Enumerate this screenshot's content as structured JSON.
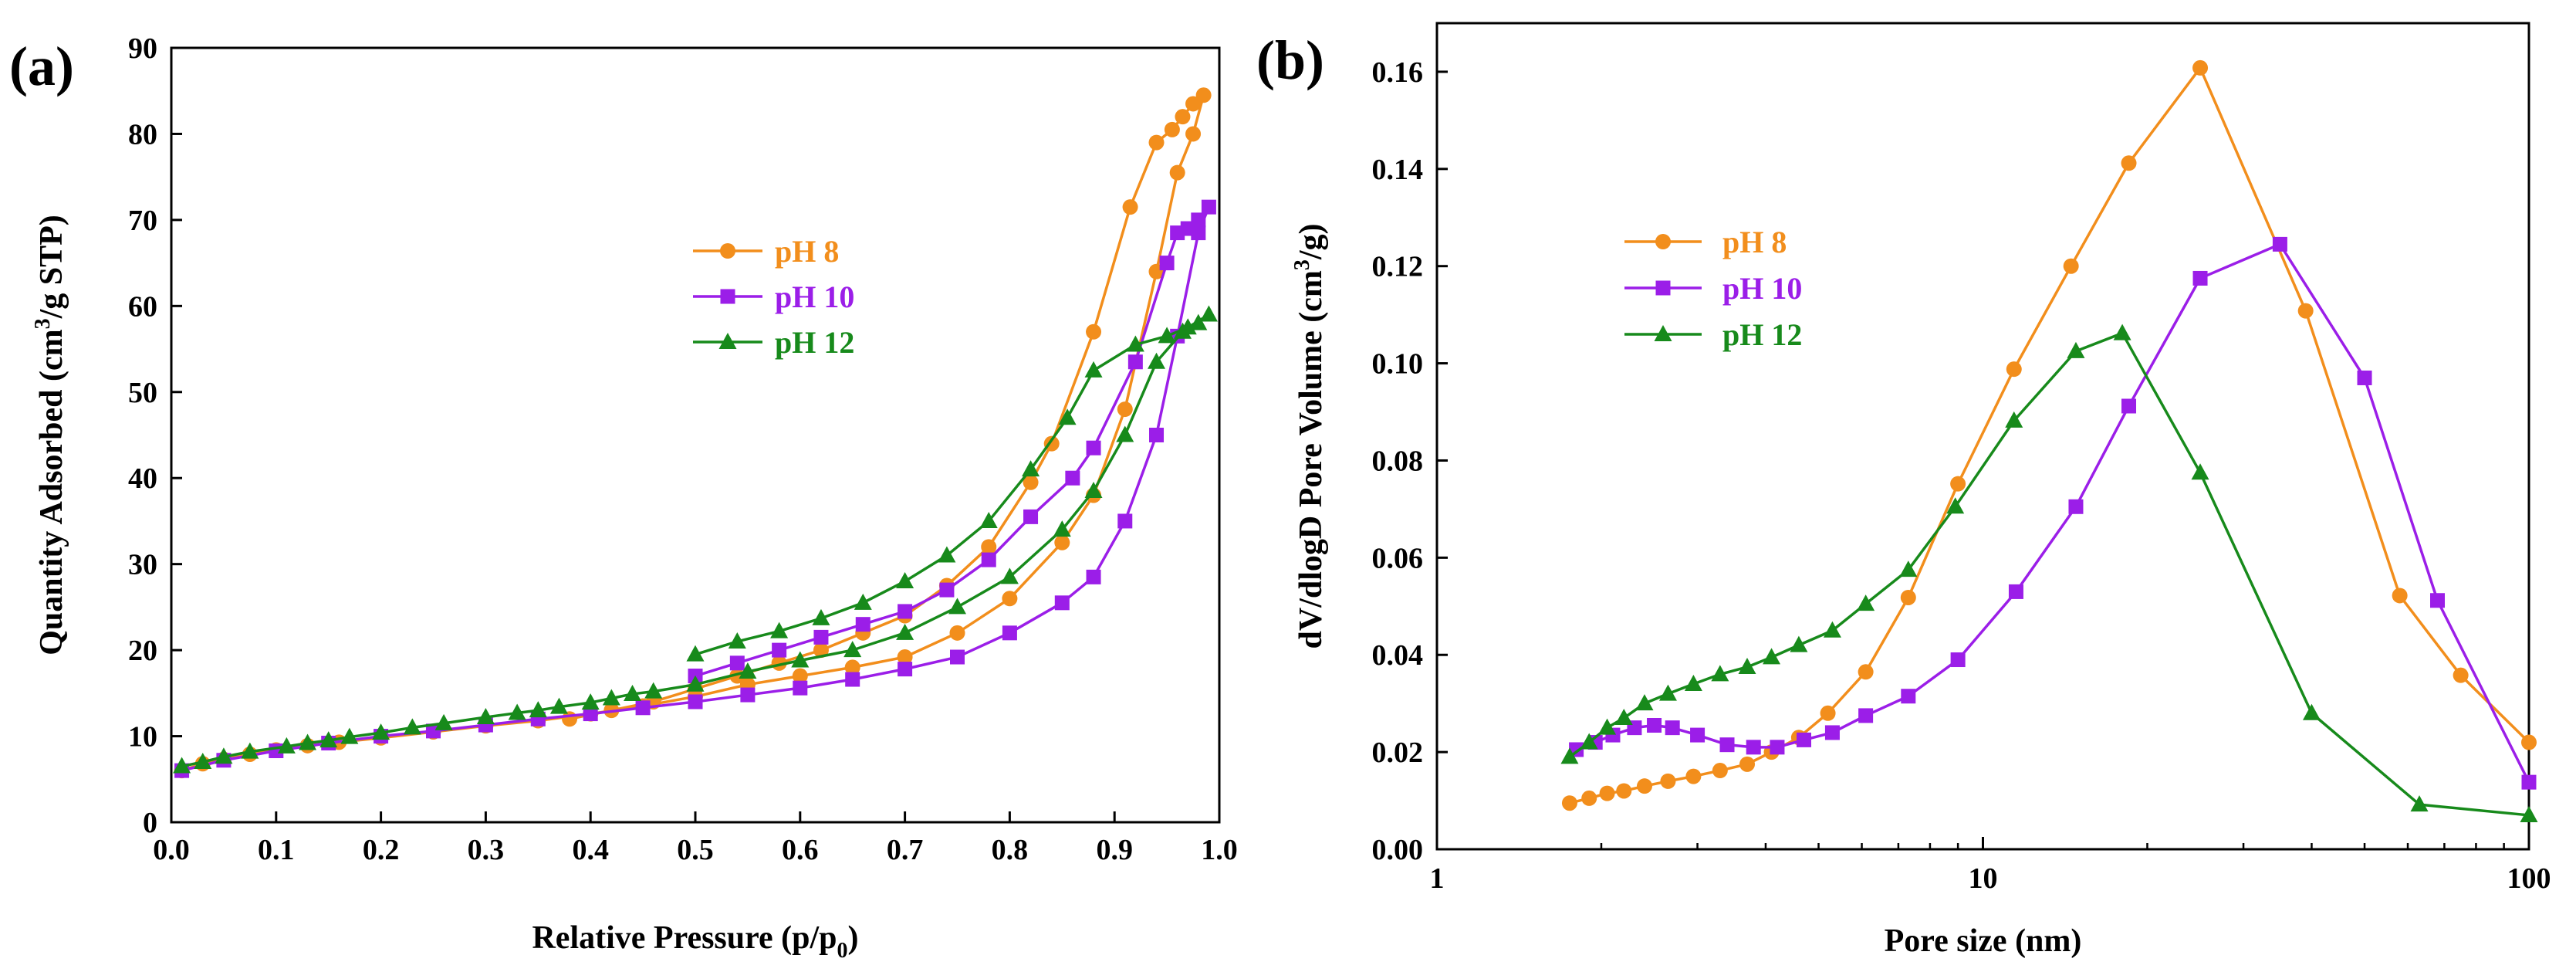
{
  "chart_data": [
    {
      "panel_label": "(a)",
      "type": "line",
      "xlabel_main": "Relative Pressure (p/p",
      "xlabel_sub": "0",
      "xlabel_end": ")",
      "ylabel_pre": "Quantity Adsorbed (cm",
      "ylabel_sup": "3",
      "ylabel_post": "/g STP)",
      "xlim": [
        0.0,
        1.0
      ],
      "ylim": [
        0,
        90
      ],
      "xticks": [
        "0.0",
        "0.1",
        "0.2",
        "0.3",
        "0.4",
        "0.5",
        "0.6",
        "0.7",
        "0.8",
        "0.9",
        "1.0"
      ],
      "yticks": [
        "0",
        "10",
        "20",
        "30",
        "40",
        "50",
        "60",
        "70",
        "80",
        "90"
      ],
      "legend": "upper-middle",
      "series": [
        {
          "name": "pH 8",
          "color": "#f28e1c",
          "marker": "circle",
          "x": [
            0.01,
            0.03,
            0.05,
            0.075,
            0.1,
            0.13,
            0.16,
            0.2,
            0.25,
            0.3,
            0.35,
            0.4,
            0.45,
            0.5,
            0.55,
            0.6,
            0.65,
            0.7,
            0.75,
            0.8,
            0.85,
            0.88,
            0.91,
            0.94,
            0.96,
            0.975,
            0.985,
            0.975,
            0.965,
            0.955,
            0.94,
            0.915,
            0.88,
            0.84,
            0.82,
            0.78,
            0.74,
            0.7,
            0.66,
            0.62,
            0.58,
            0.54,
            0.5,
            0.46,
            0.42,
            0.38
          ],
          "y": [
            6.0,
            6.8,
            7.3,
            7.9,
            8.4,
            8.9,
            9.3,
            9.8,
            10.5,
            11.2,
            11.8,
            12.6,
            13.5,
            14.6,
            16.0,
            17.0,
            18.0,
            19.2,
            22.0,
            26.0,
            32.5,
            38.0,
            48.0,
            64.0,
            75.5,
            80.0,
            84.5,
            83.5,
            82.0,
            80.5,
            79.0,
            71.5,
            57.0,
            44.0,
            39.5,
            32.0,
            27.5,
            24.0,
            22.0,
            20.0,
            18.5,
            17.0,
            15.5,
            14.0,
            13.0,
            12.0
          ]
        },
        {
          "name": "pH 10",
          "color": "#9b1ee8",
          "marker": "square",
          "x": [
            0.01,
            0.05,
            0.1,
            0.15,
            0.2,
            0.25,
            0.3,
            0.35,
            0.4,
            0.45,
            0.5,
            0.55,
            0.6,
            0.65,
            0.7,
            0.75,
            0.8,
            0.85,
            0.88,
            0.91,
            0.94,
            0.96,
            0.98,
            0.99,
            0.98,
            0.97,
            0.96,
            0.95,
            0.92,
            0.88,
            0.86,
            0.82,
            0.78,
            0.74,
            0.7,
            0.66,
            0.62,
            0.58,
            0.54,
            0.5
          ],
          "y": [
            6.0,
            7.2,
            8.3,
            9.2,
            10.0,
            10.6,
            11.3,
            12.0,
            12.6,
            13.3,
            14.0,
            14.8,
            15.6,
            16.6,
            17.8,
            19.2,
            22.0,
            25.5,
            28.5,
            35.0,
            45.0,
            56.5,
            68.5,
            71.5,
            70.0,
            69.0,
            68.5,
            65.0,
            53.5,
            43.5,
            40.0,
            35.5,
            30.5,
            27.0,
            24.5,
            23.0,
            21.5,
            20.0,
            18.5,
            17.0
          ]
        },
        {
          "name": "pH 12",
          "color": "#178a1b",
          "marker": "triangle",
          "x": [
            0.01,
            0.03,
            0.05,
            0.075,
            0.11,
            0.13,
            0.15,
            0.17,
            0.2,
            0.23,
            0.26,
            0.3,
            0.33,
            0.35,
            0.37,
            0.4,
            0.42,
            0.44,
            0.46,
            0.5,
            0.55,
            0.6,
            0.65,
            0.7,
            0.75,
            0.8,
            0.85,
            0.88,
            0.91,
            0.94,
            0.965,
            0.98,
            0.99,
            0.97,
            0.95,
            0.92,
            0.88,
            0.855,
            0.82,
            0.78,
            0.74,
            0.7,
            0.66,
            0.62,
            0.58,
            0.54,
            0.5
          ],
          "y": [
            6.5,
            7.0,
            7.6,
            8.2,
            8.8,
            9.2,
            9.5,
            9.9,
            10.4,
            11.0,
            11.5,
            12.2,
            12.7,
            13.0,
            13.4,
            13.9,
            14.4,
            14.9,
            15.2,
            16.0,
            17.5,
            18.8,
            20.0,
            22.0,
            25.0,
            28.5,
            34.0,
            38.5,
            45.0,
            53.5,
            57.0,
            58.0,
            59.0,
            57.5,
            56.5,
            55.5,
            52.5,
            47.0,
            41.0,
            35.0,
            31.0,
            28.0,
            25.5,
            23.7,
            22.2,
            21.0,
            19.5
          ]
        }
      ]
    },
    {
      "panel_label": "(b)",
      "type": "line",
      "xlabel": "Pore size (nm)",
      "ylabel_pre": "dV/dlogD Pore Volume (cm",
      "ylabel_sup": "3",
      "ylabel_post": "/g)",
      "xscale": "log",
      "xlim": [
        1,
        100
      ],
      "ylim": [
        0.0,
        0.17
      ],
      "xticks": [
        {
          "value": 1,
          "label": "1"
        },
        {
          "value": 10,
          "label": "10"
        },
        {
          "value": 100,
          "label": "100"
        }
      ],
      "yticks": [
        "0.00",
        "0.02",
        "0.04",
        "0.06",
        "0.08",
        "0.10",
        "0.12",
        "0.14",
        "0.16"
      ],
      "yticks_values": [
        0.0,
        0.02,
        0.04,
        0.06,
        0.08,
        0.1,
        0.12,
        0.14,
        0.16
      ],
      "legend": "upper-left",
      "series": [
        {
          "name": "pH 8",
          "color": "#f28e1c",
          "marker": "circle",
          "x": [
            1.75,
            1.9,
            2.05,
            2.2,
            2.4,
            2.65,
            2.95,
            3.3,
            3.7,
            4.1,
            4.6,
            5.2,
            6.1,
            7.3,
            9.0,
            11.4,
            14.5,
            18.5,
            25.0,
            39.0,
            58.0,
            75.0,
            100.0
          ],
          "y": [
            0.0095,
            0.0105,
            0.0115,
            0.012,
            0.013,
            0.014,
            0.015,
            0.0162,
            0.0175,
            0.02,
            0.023,
            0.028,
            0.0365,
            0.0518,
            0.0752,
            0.0988,
            0.12,
            0.1412,
            0.1608,
            0.1108,
            0.0522,
            0.0358,
            0.022
          ]
        },
        {
          "name": "pH 10",
          "color": "#9b1ee8",
          "marker": "square",
          "x": [
            1.8,
            1.95,
            2.1,
            2.3,
            2.5,
            2.7,
            3.0,
            3.4,
            3.8,
            4.2,
            4.7,
            5.3,
            6.1,
            7.3,
            9.0,
            11.5,
            14.8,
            18.5,
            25.0,
            35.0,
            50.0,
            68.0,
            100.0
          ],
          "y": [
            0.0205,
            0.022,
            0.0235,
            0.025,
            0.0255,
            0.025,
            0.0235,
            0.0215,
            0.021,
            0.021,
            0.0225,
            0.024,
            0.0275,
            0.0315,
            0.039,
            0.053,
            0.0705,
            0.0912,
            0.1175,
            0.1245,
            0.097,
            0.0512,
            0.0138
          ]
        },
        {
          "name": "pH 12",
          "color": "#178a1b",
          "marker": "triangle",
          "x": [
            1.75,
            1.9,
            2.05,
            2.2,
            2.4,
            2.65,
            2.95,
            3.3,
            3.7,
            4.1,
            4.6,
            5.3,
            6.1,
            7.3,
            8.9,
            11.4,
            14.8,
            18.0,
            25.0,
            40.0,
            63.0,
            100.0
          ],
          "y": [
            0.019,
            0.022,
            0.025,
            0.027,
            0.03,
            0.032,
            0.034,
            0.036,
            0.0375,
            0.0395,
            0.042,
            0.045,
            0.0505,
            0.0575,
            0.0705,
            0.0882,
            0.1025,
            0.1062,
            0.0775,
            0.028,
            0.0092,
            0.007
          ]
        }
      ]
    }
  ]
}
